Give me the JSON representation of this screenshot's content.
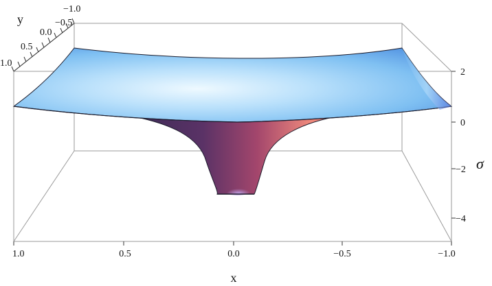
{
  "plot": {
    "x_label": "x",
    "y_label": "y",
    "z_label": "σ",
    "x_ticks": [
      "1.0",
      "0.5",
      "0.0",
      "−0.5",
      "−1.0"
    ],
    "y_ticks": [
      "1.0",
      "0.5",
      "0.0",
      "−0.5",
      "−1.0"
    ],
    "z_ticks": [
      "2",
      "0",
      "−2",
      "−4"
    ],
    "surface_colors": {
      "sheet_light": "#e6f6ff",
      "sheet_mid": "#8ec8f4",
      "sheet_edge": "#5a9be3",
      "funnel_dark": "#3d2a55",
      "funnel_mid": "#7a3c6a",
      "funnel_light": "#f0857a"
    }
  }
}
